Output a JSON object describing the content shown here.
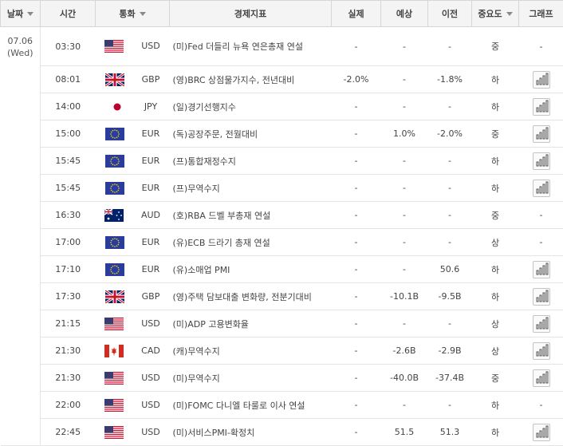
{
  "columns": [
    {
      "key": "date",
      "label": "날짜",
      "sort": true
    },
    {
      "key": "time",
      "label": "시간",
      "sort": false
    },
    {
      "key": "currency",
      "label": "통화",
      "sort": true
    },
    {
      "key": "indicator",
      "label": "경제지표",
      "sort": false
    },
    {
      "key": "actual",
      "label": "실제",
      "sort": false
    },
    {
      "key": "forecast",
      "label": "예상",
      "sort": false
    },
    {
      "key": "previous",
      "label": "이전",
      "sort": false
    },
    {
      "key": "importance",
      "label": "중요도",
      "sort": true
    },
    {
      "key": "graph",
      "label": "그래프",
      "sort": false
    }
  ],
  "date_group": {
    "date": "07.06",
    "weekday": "(Wed)"
  },
  "rows": [
    {
      "time": "03:30",
      "flag": "us",
      "currency": "USD",
      "indicator": "(미)Fed 더들리 뉴욕 연은총재 연설",
      "actual": "-",
      "forecast": "-",
      "previous": "-",
      "importance": "중",
      "graph": false
    },
    {
      "time": "08:01",
      "flag": "gb",
      "currency": "GBP",
      "indicator": "(영)BRC 상점물가지수, 전년대비",
      "actual": "-2.0%",
      "forecast": "-",
      "previous": "-1.8%",
      "importance": "하",
      "graph": true
    },
    {
      "time": "14:00",
      "flag": "jp",
      "currency": "JPY",
      "indicator": "(일)경기선행지수",
      "actual": "-",
      "forecast": "-",
      "previous": "-",
      "importance": "하",
      "graph": true
    },
    {
      "time": "15:00",
      "flag": "eu",
      "currency": "EUR",
      "indicator": "(독)공장주문, 전월대비",
      "actual": "-",
      "forecast": "1.0%",
      "previous": "-2.0%",
      "importance": "중",
      "graph": true
    },
    {
      "time": "15:45",
      "flag": "eu",
      "currency": "EUR",
      "indicator": "(프)통합재정수지",
      "actual": "-",
      "forecast": "-",
      "previous": "-",
      "importance": "하",
      "graph": true
    },
    {
      "time": "15:45",
      "flag": "eu",
      "currency": "EUR",
      "indicator": "(프)무역수지",
      "actual": "-",
      "forecast": "-",
      "previous": "-",
      "importance": "하",
      "graph": true
    },
    {
      "time": "16:30",
      "flag": "au",
      "currency": "AUD",
      "indicator": "(호)RBA 드벨 부총재 연설",
      "actual": "-",
      "forecast": "-",
      "previous": "-",
      "importance": "중",
      "graph": false
    },
    {
      "time": "17:00",
      "flag": "eu",
      "currency": "EUR",
      "indicator": "(유)ECB 드라기 총재 연설",
      "actual": "-",
      "forecast": "-",
      "previous": "-",
      "importance": "상",
      "graph": false
    },
    {
      "time": "17:10",
      "flag": "eu",
      "currency": "EUR",
      "indicator": "(유)소매업 PMI",
      "actual": "-",
      "forecast": "-",
      "previous": "50.6",
      "importance": "하",
      "graph": true
    },
    {
      "time": "17:30",
      "flag": "gb",
      "currency": "GBP",
      "indicator": "(영)주택 담보대출 변화량, 전분기대비",
      "actual": "-",
      "forecast": "-10.1B",
      "previous": "-9.5B",
      "importance": "하",
      "graph": true
    },
    {
      "time": "21:15",
      "flag": "us",
      "currency": "USD",
      "indicator": "(미)ADP 고용변화율",
      "actual": "-",
      "forecast": "-",
      "previous": "-",
      "importance": "상",
      "graph": true
    },
    {
      "time": "21:30",
      "flag": "ca",
      "currency": "CAD",
      "indicator": "(캐)무역수지",
      "actual": "-",
      "forecast": "-2.6B",
      "previous": "-2.9B",
      "importance": "상",
      "graph": true
    },
    {
      "time": "21:30",
      "flag": "us",
      "currency": "USD",
      "indicator": "(미)무역수지",
      "actual": "-",
      "forecast": "-40.0B",
      "previous": "-37.4B",
      "importance": "중",
      "graph": true
    },
    {
      "time": "22:00",
      "flag": "us",
      "currency": "USD",
      "indicator": "(미)FOMC 다니엘 타룰로 이사 연설",
      "actual": "-",
      "forecast": "-",
      "previous": "-",
      "importance": "하",
      "graph": false
    },
    {
      "time": "22:45",
      "flag": "us",
      "currency": "USD",
      "indicator": "(미)서비스PMI-확정치",
      "actual": "-",
      "forecast": "51.5",
      "previous": "51.3",
      "importance": "하",
      "graph": true
    }
  ],
  "icons": {
    "graph": "bar-chart-icon",
    "sort": "sort-arrow-icon"
  },
  "colors": {
    "header_bg": "#f4f4f4",
    "border": "#d6d6d6",
    "row_border": "#e4e4e4",
    "text": "#444444"
  }
}
